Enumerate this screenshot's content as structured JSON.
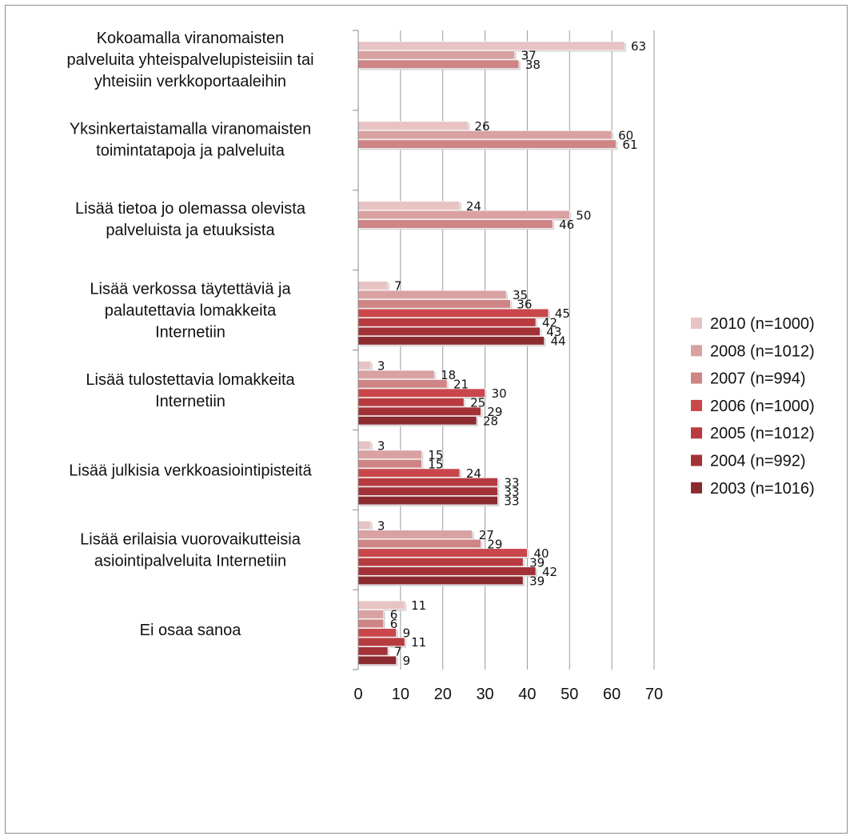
{
  "chart_data": {
    "type": "bar",
    "orientation": "horizontal",
    "categories": [
      [
        "Kokoamalla viranomaisten",
        "palveluita yhteispalvelupisteisiin tai",
        "yhteisiin verkkoportaaleihin"
      ],
      [
        "Yksinkertaistamalla viranomaisten",
        "toimintatapoja ja palveluita"
      ],
      [
        "Lisää tietoa jo olemassa olevista",
        "palveluista ja etuuksista"
      ],
      [
        "Lisää verkossa täytettäviä ja",
        "palautettavia lomakkeita",
        "Internetiin"
      ],
      [
        "Lisää tulostettavia lomakkeita",
        "Internetiin"
      ],
      [
        "Lisää julkisia verkkoasiointipisteitä"
      ],
      [
        "Lisää erilaisia vuorovaikutteisia",
        "asiointipalveluita Internetiin"
      ],
      [
        "Ei osaa sanoa"
      ]
    ],
    "series": [
      {
        "name": "2010 (n=1000)",
        "color": "#e8c3c4",
        "values": [
          63,
          26,
          24,
          7,
          3,
          3,
          3,
          11
        ]
      },
      {
        "name": "2008 (n=1012)",
        "color": "#d9a1a2",
        "values": [
          37,
          60,
          50,
          35,
          18,
          15,
          27,
          6
        ]
      },
      {
        "name": "2007 (n=994)",
        "color": "#cf8485",
        "values": [
          38,
          61,
          46,
          36,
          21,
          15,
          29,
          6
        ]
      },
      {
        "name": "2006 (n=1000)",
        "color": "#c9474c",
        "values": [
          null,
          null,
          null,
          45,
          30,
          24,
          40,
          9
        ]
      },
      {
        "name": "2005 (n=1012)",
        "color": "#b83b40",
        "values": [
          null,
          null,
          null,
          42,
          25,
          33,
          39,
          11
        ]
      },
      {
        "name": "2004 (n=992)",
        "color": "#a33237",
        "values": [
          null,
          null,
          null,
          43,
          29,
          33,
          42,
          7
        ]
      },
      {
        "name": "2003 (n=1016)",
        "color": "#8b2b30",
        "values": [
          null,
          null,
          null,
          44,
          28,
          33,
          39,
          9
        ]
      }
    ],
    "xlim": [
      0,
      70
    ],
    "xticks": [
      0,
      10,
      20,
      30,
      40,
      50,
      60,
      70
    ],
    "grid": "vertical",
    "legend_position": "right",
    "title": "",
    "xlabel": "",
    "ylabel": ""
  }
}
